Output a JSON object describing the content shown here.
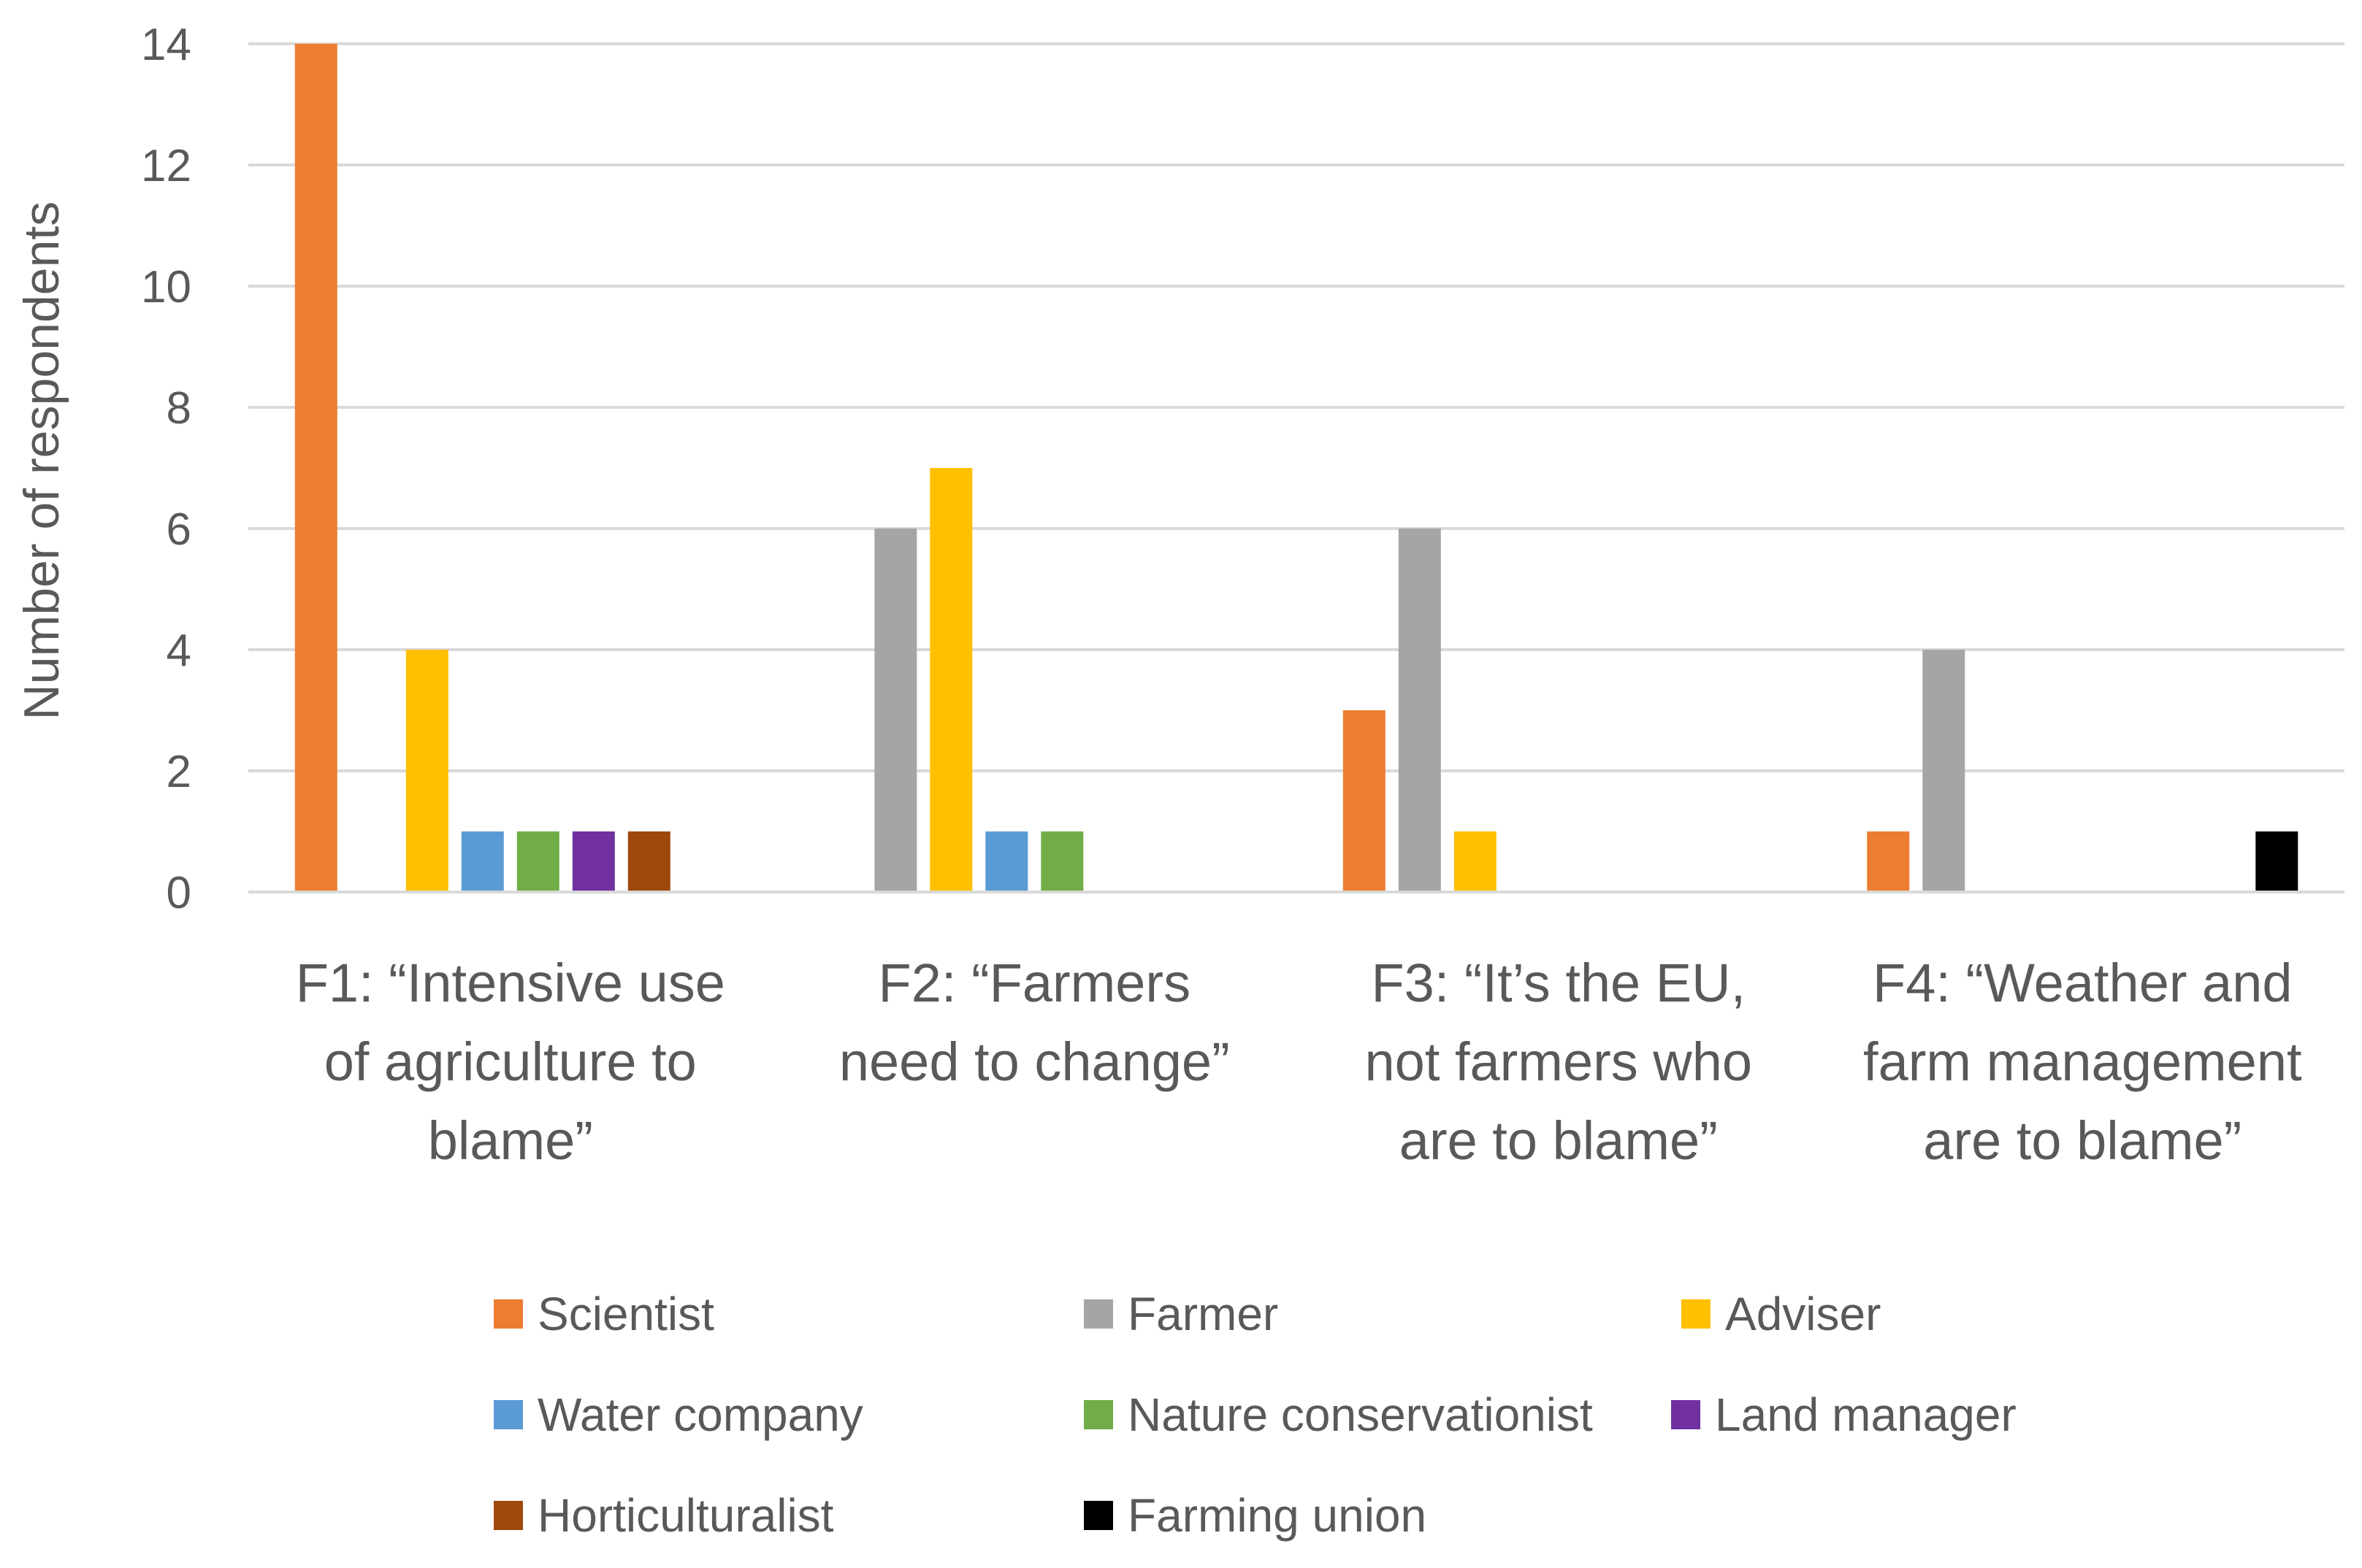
{
  "chart_data": {
    "type": "bar",
    "title": "",
    "xlabel": "",
    "ylabel": "Number of respondents",
    "ylim": [
      0,
      14
    ],
    "yticks": [
      0,
      2,
      4,
      6,
      8,
      10,
      12,
      14
    ],
    "grid": true,
    "legend_position": "bottom",
    "categories": [
      [
        "F1: “Intensive use",
        "of agriculture to",
        "blame”"
      ],
      [
        "F2: “Farmers",
        "need to change”"
      ],
      [
        "F3: “It’s the EU,",
        "not farmers who",
        "are to blame”"
      ],
      [
        "F4: “Weather and",
        "farm management",
        "are to blame”"
      ]
    ],
    "series": [
      {
        "name": "Scientist",
        "color": "#ED7D31",
        "values": [
          14,
          0,
          3,
          1
        ]
      },
      {
        "name": "Farmer",
        "color": "#A5A5A5",
        "values": [
          0,
          6,
          6,
          4
        ]
      },
      {
        "name": "Adviser",
        "color": "#FFC000",
        "values": [
          4,
          7,
          1,
          0
        ]
      },
      {
        "name": "Water company",
        "color": "#5B9BD5",
        "values": [
          1,
          1,
          0,
          0
        ]
      },
      {
        "name": "Nature conservationist",
        "color": "#70AD47",
        "values": [
          1,
          1,
          0,
          0
        ]
      },
      {
        "name": "Land manager",
        "color": "#7030A0",
        "values": [
          1,
          0,
          0,
          0
        ]
      },
      {
        "name": "Horticulturalist",
        "color": "#9E480E",
        "values": [
          1,
          0,
          0,
          0
        ]
      },
      {
        "name": "Farming union",
        "color": "#000000",
        "values": [
          0,
          0,
          0,
          1
        ]
      }
    ]
  }
}
